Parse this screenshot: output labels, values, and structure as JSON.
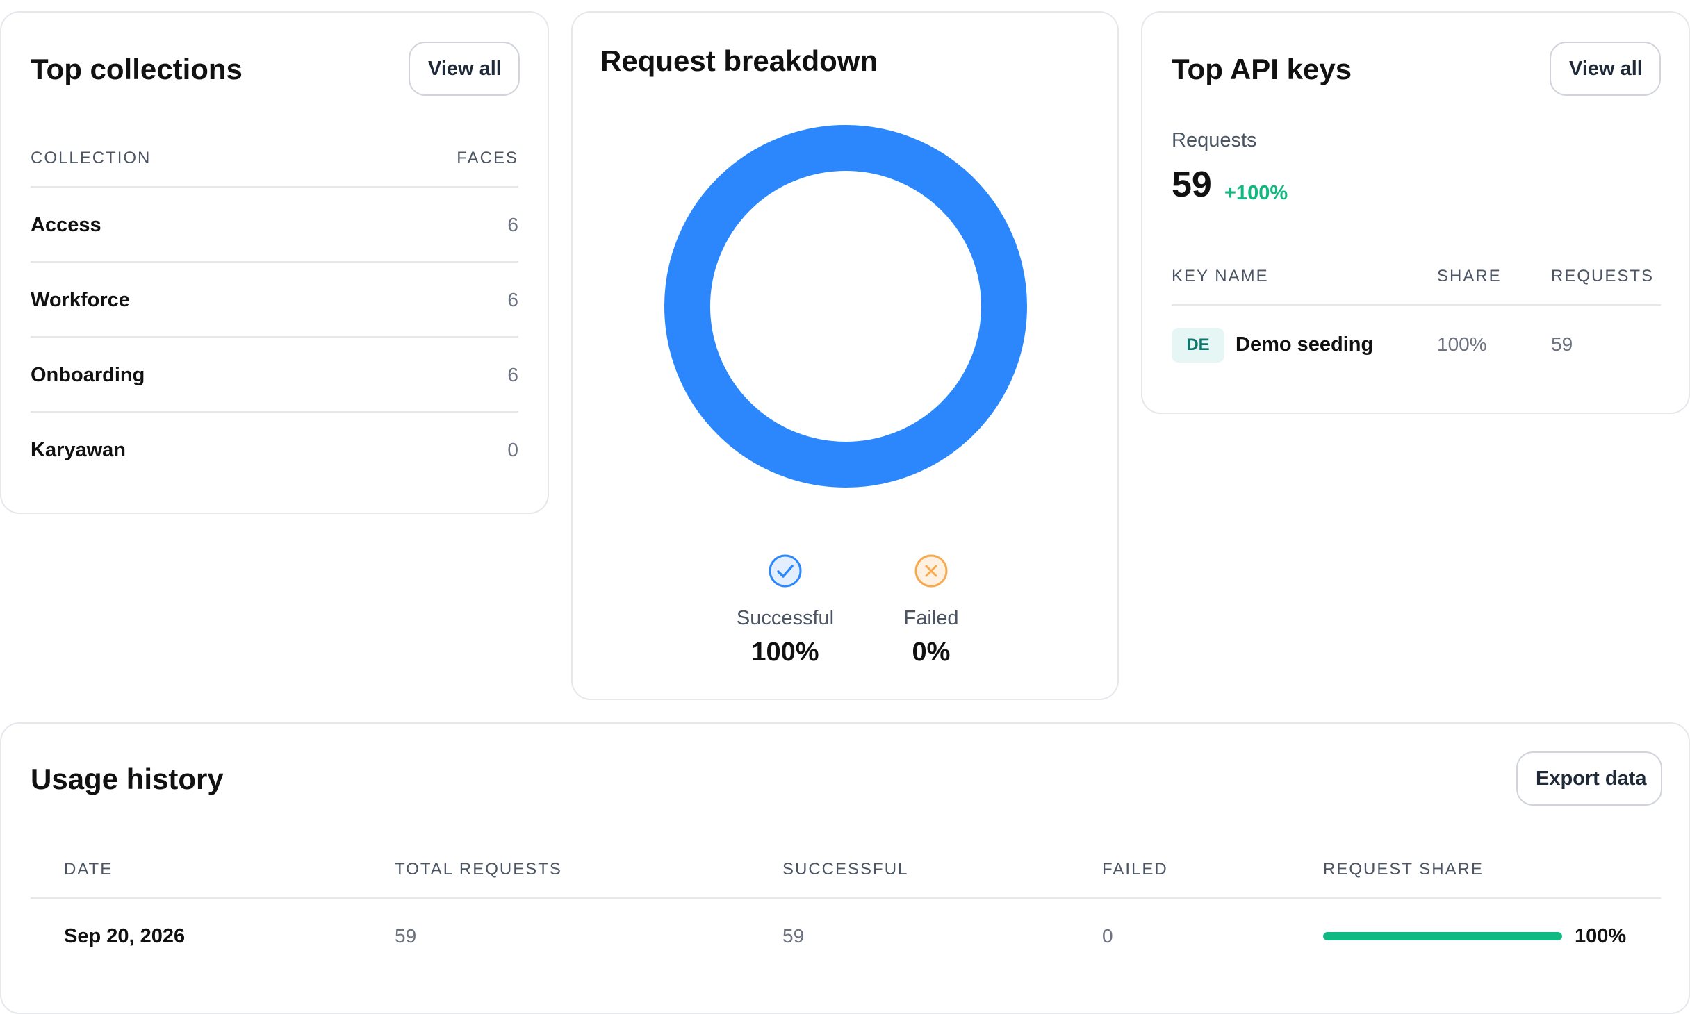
{
  "top_collections": {
    "title": "Top collections",
    "view_all_label": "View all",
    "columns": {
      "collection": "COLLECTION",
      "faces": "FACES"
    },
    "rows": [
      {
        "name": "Access",
        "faces": "6"
      },
      {
        "name": "Workforce",
        "faces": "6"
      },
      {
        "name": "Onboarding",
        "faces": "6"
      },
      {
        "name": "Karyawan",
        "faces": "0"
      }
    ]
  },
  "request_breakdown": {
    "title": "Request breakdown",
    "successful": {
      "label": "Successful",
      "value": "100%",
      "fraction": 1.0,
      "color": "#2b87fb"
    },
    "failed": {
      "label": "Failed",
      "value": "0%",
      "fraction": 0.0,
      "color": "#f6a94f"
    }
  },
  "top_api_keys": {
    "title": "Top API keys",
    "view_all_label": "View all",
    "requests_label": "Requests",
    "requests_total": "59",
    "requests_change": "+100%",
    "columns": {
      "key_name": "KEY NAME",
      "share": "SHARE",
      "requests": "REQUESTS"
    },
    "rows": [
      {
        "badge": "DE",
        "name": "Demo seeding",
        "share": "100%",
        "requests": "59"
      }
    ]
  },
  "usage_history": {
    "title": "Usage history",
    "export_label": "Export data",
    "columns": {
      "date": "DATE",
      "total_requests": "TOTAL REQUESTS",
      "successful": "SUCCESSFUL",
      "failed": "FAILED",
      "request_share": "REQUEST SHARE"
    },
    "rows": [
      {
        "date": "Sep 20, 2026",
        "total_requests": "59",
        "successful": "59",
        "failed": "0",
        "share_label": "100%",
        "share_fraction": 1.0
      }
    ]
  },
  "colors": {
    "accent_blue": "#2b87fb",
    "accent_green": "#10b981",
    "failed_orange": "#f6a94f"
  }
}
